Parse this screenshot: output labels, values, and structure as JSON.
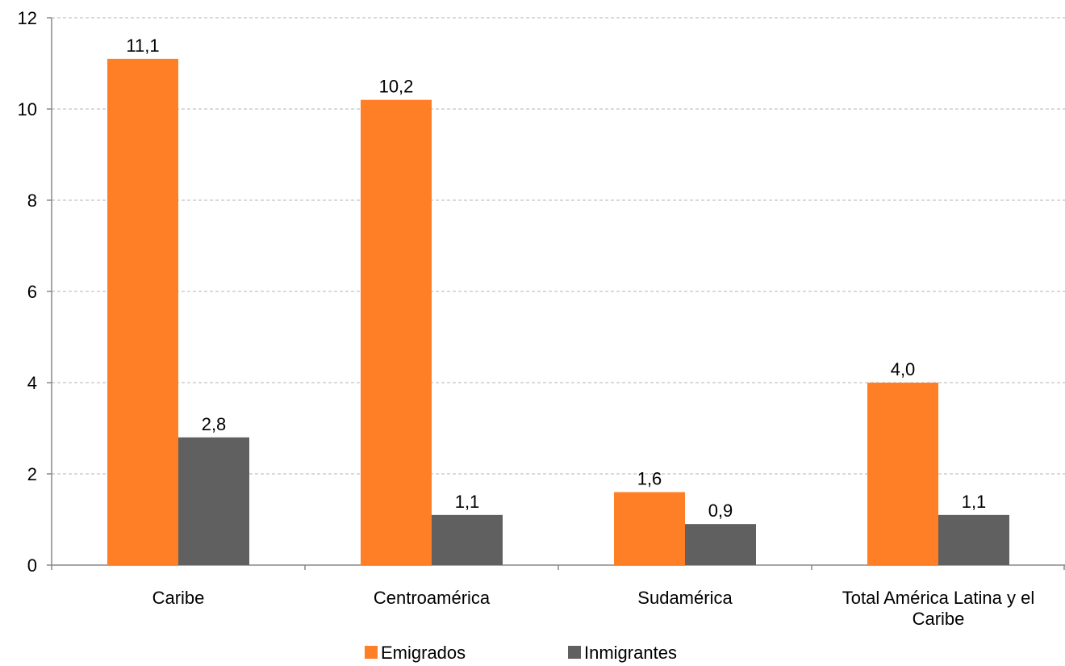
{
  "chart_data": {
    "type": "bar",
    "title": "",
    "xlabel": "",
    "ylabel": "",
    "ylim": [
      0,
      12
    ],
    "yticks": [
      0,
      2,
      4,
      6,
      8,
      10,
      12
    ],
    "grid": true,
    "legend_position": "bottom",
    "categories": [
      [
        "Caribe"
      ],
      [
        "Centroamérica"
      ],
      [
        "Sudamérica"
      ],
      [
        "Total América Latina y el",
        "Caribe"
      ]
    ],
    "series": [
      {
        "name": "Emigrados",
        "color": "#FF7F27",
        "values": [
          11.1,
          10.2,
          1.6,
          4.0
        ],
        "labels": [
          "11,1",
          "10,2",
          "1,6",
          "4,0"
        ]
      },
      {
        "name": "Inmigrantes",
        "color": "#606060",
        "values": [
          2.8,
          1.1,
          0.9,
          1.1
        ],
        "labels": [
          "2,8",
          "1,1",
          "0,9",
          "1,1"
        ]
      }
    ]
  }
}
